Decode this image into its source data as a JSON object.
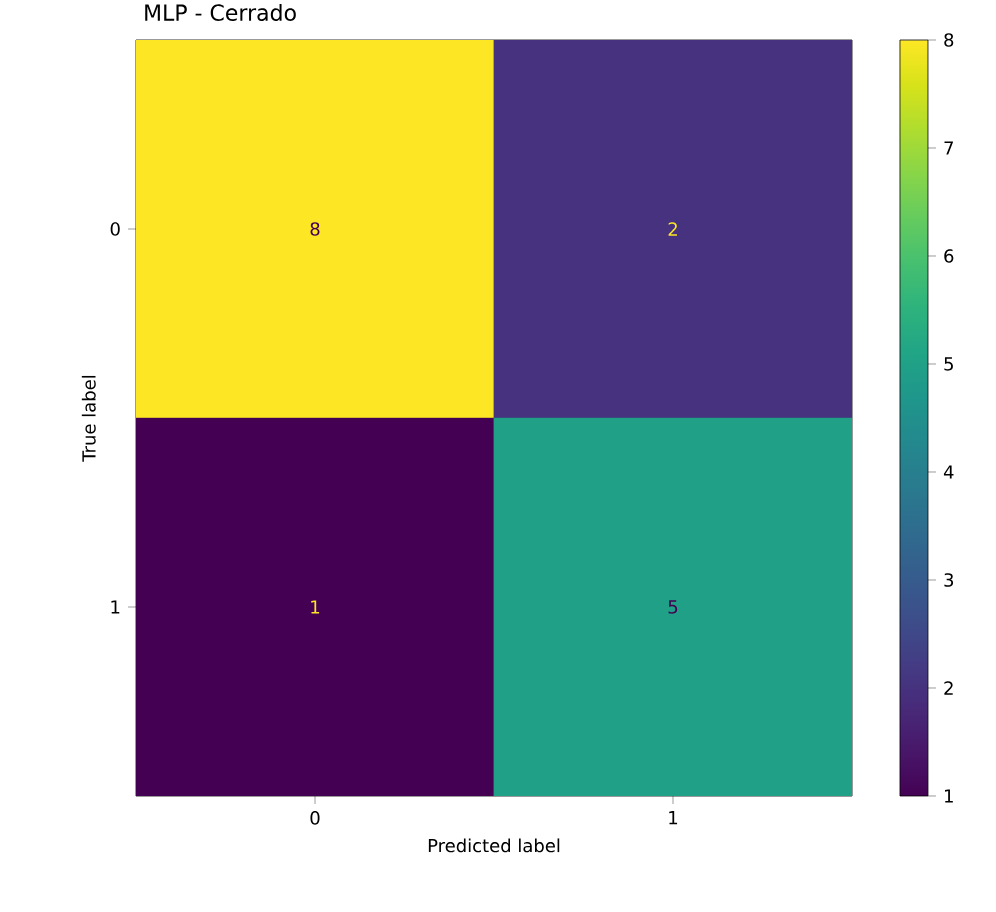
{
  "chart_data": {
    "type": "heatmap",
    "title": "MLP - Cerrado",
    "xlabel": "Predicted label",
    "ylabel": "True label",
    "categories": [
      "0",
      "1"
    ],
    "y_categories": [
      "0",
      "1"
    ],
    "cells": [
      [
        8,
        2
      ],
      [
        1,
        5
      ]
    ],
    "data_labels": true,
    "clim": [
      1,
      8
    ],
    "cticks": [
      1,
      2,
      3,
      4,
      5,
      6,
      7,
      8
    ]
  }
}
